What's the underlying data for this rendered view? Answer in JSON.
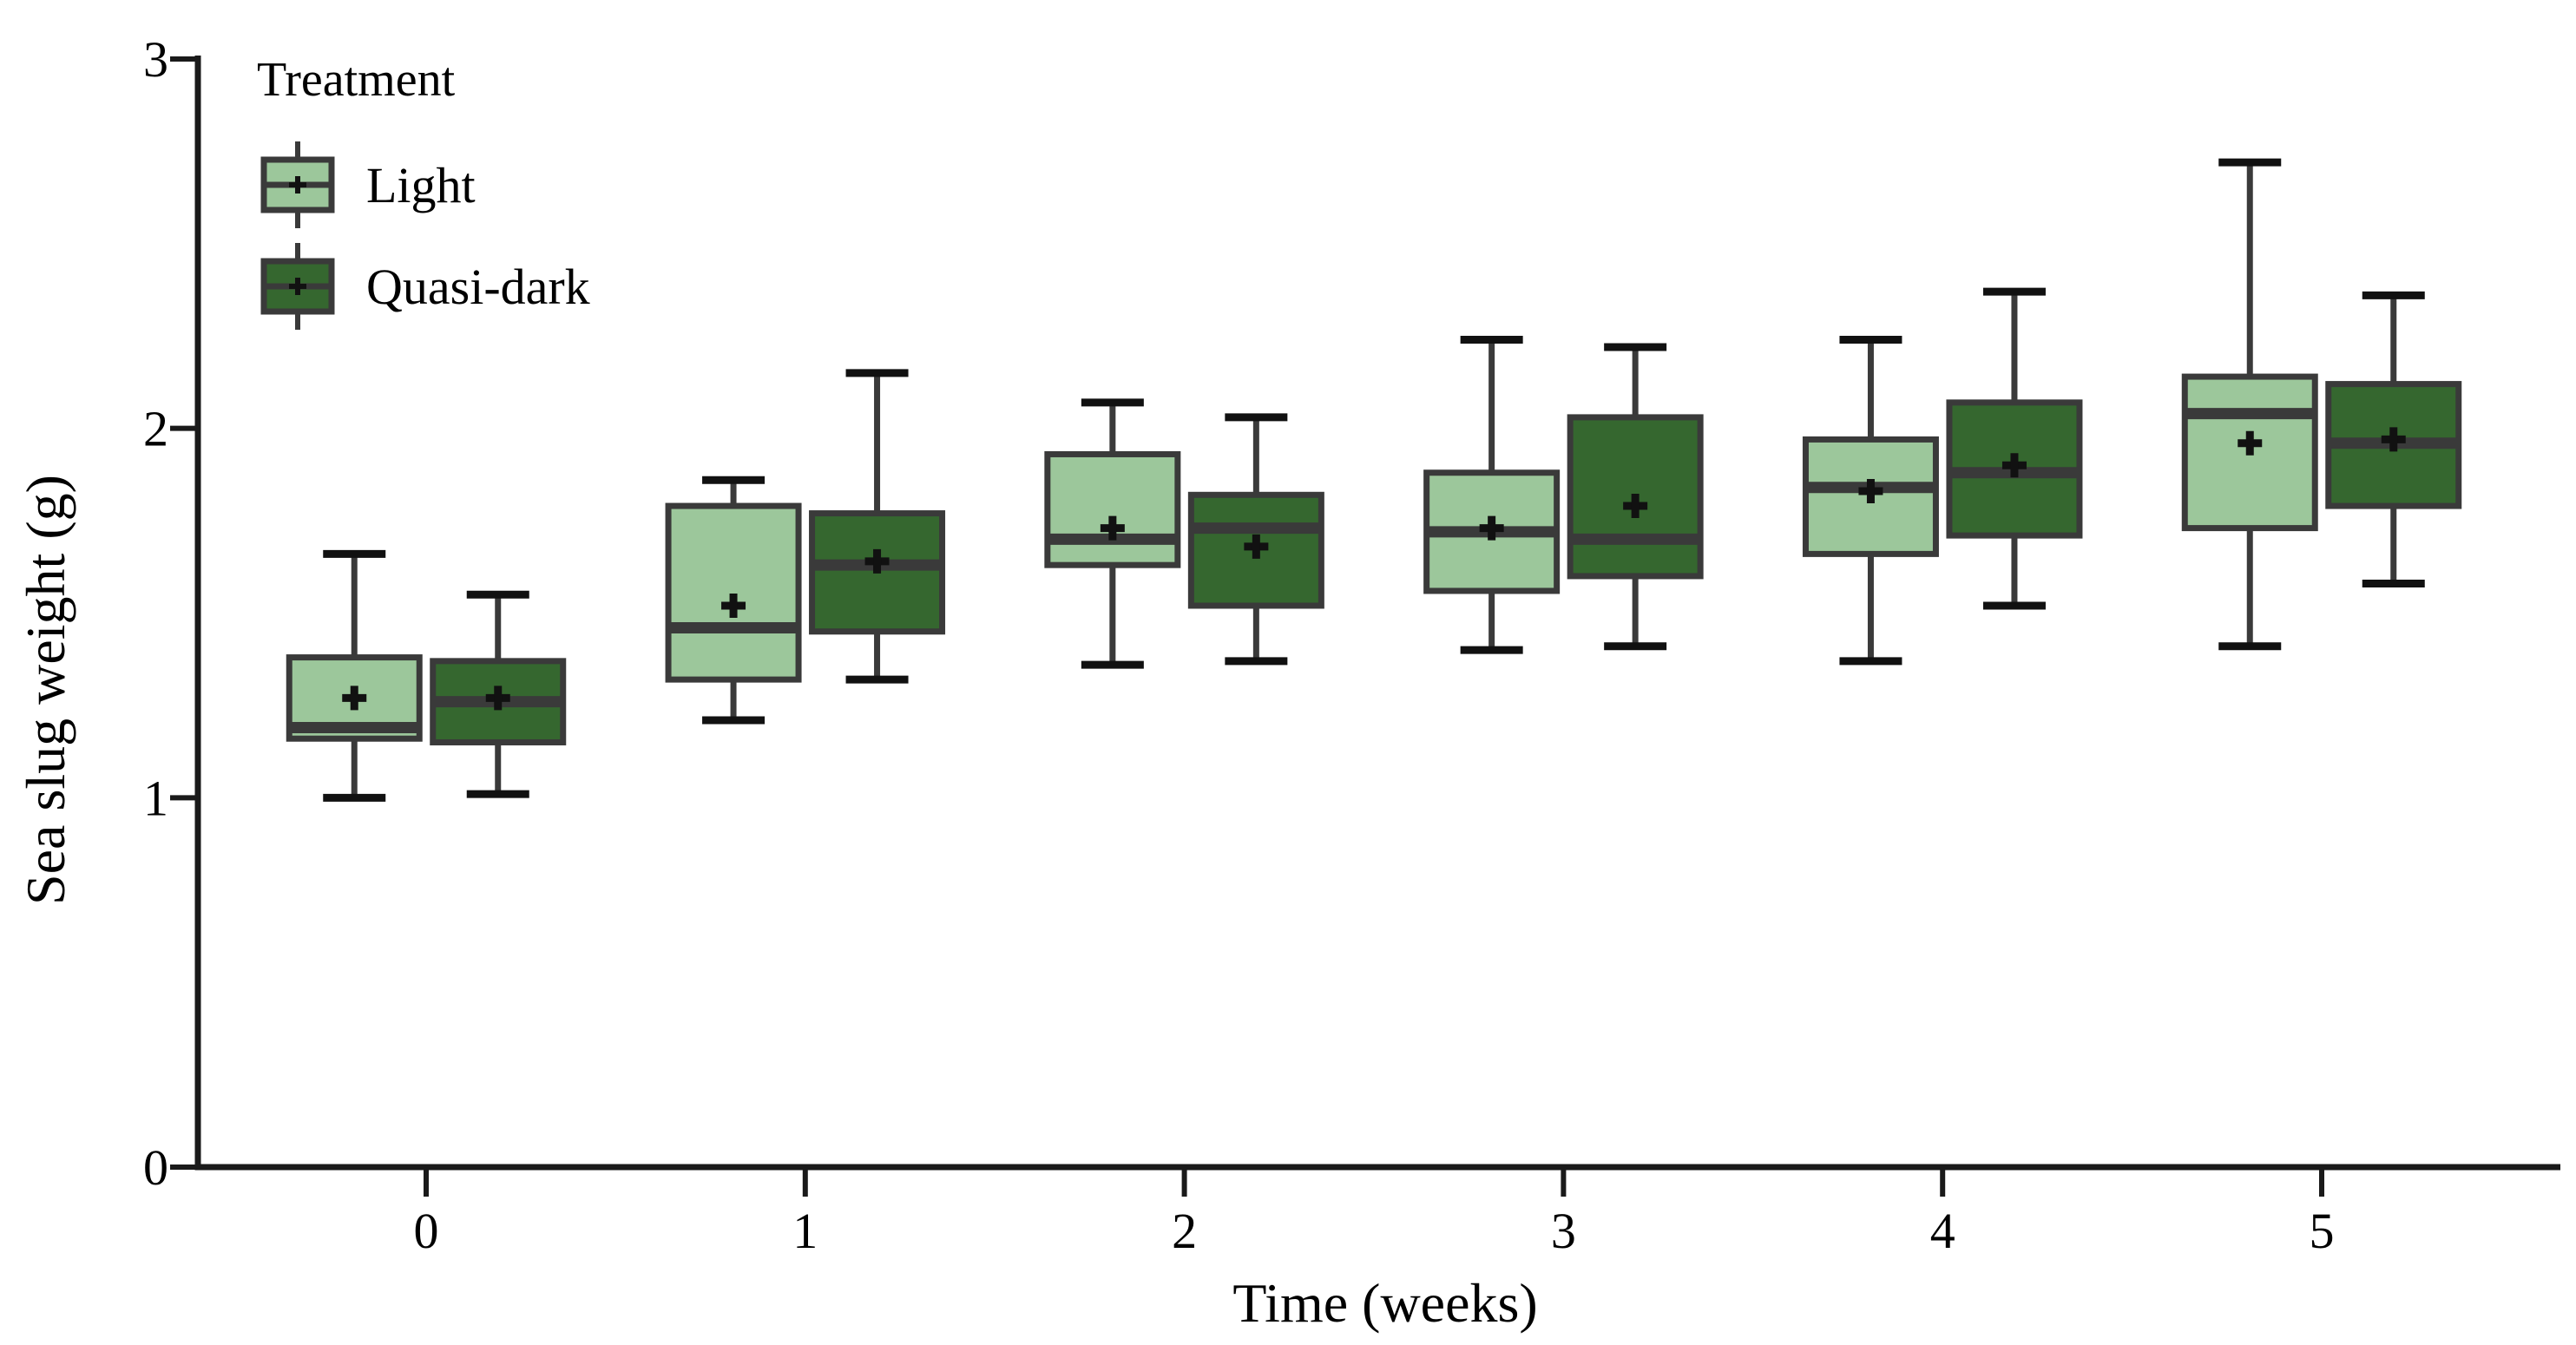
{
  "figure": {
    "background": "#ffffff",
    "text_color": "#000000",
    "box_border_color": "#3A3A3A",
    "whisker_color": "#3A3A3A",
    "whisker_cap_color": "#111111",
    "mean_marker_color": "#111111",
    "axis_color": "#1a1a1a"
  },
  "chart_data": {
    "type": "boxplot",
    "title": "",
    "xlabel": "Time (weeks)",
    "ylabel": "Sea slug weight (g)",
    "legend_title": "Treatment",
    "legend_position": "top-left-inside",
    "grid": false,
    "categories": [
      "0",
      "1",
      "2",
      "3",
      "4",
      "5"
    ],
    "yticks": [
      "0",
      "1",
      "2",
      "3"
    ],
    "ylim": [
      0,
      3
    ],
    "units": "g",
    "series": [
      {
        "name": "Light",
        "color": "#9CC79B",
        "boxes": [
          {
            "week": 0,
            "min": 1.0,
            "q1": 1.16,
            "median": 1.19,
            "q3": 1.38,
            "max": 1.66,
            "mean": 1.27
          },
          {
            "week": 1,
            "min": 1.21,
            "q1": 1.32,
            "median": 1.46,
            "q3": 1.79,
            "max": 1.86,
            "mean": 1.52
          },
          {
            "week": 2,
            "min": 1.36,
            "q1": 1.63,
            "median": 1.7,
            "q3": 1.93,
            "max": 2.07,
            "mean": 1.73
          },
          {
            "week": 3,
            "min": 1.4,
            "q1": 1.56,
            "median": 1.72,
            "q3": 1.88,
            "max": 2.24,
            "mean": 1.73
          },
          {
            "week": 4,
            "min": 1.37,
            "q1": 1.66,
            "median": 1.84,
            "q3": 1.97,
            "max": 2.24,
            "mean": 1.83
          },
          {
            "week": 5,
            "min": 1.41,
            "q1": 1.73,
            "median": 2.04,
            "q3": 2.14,
            "max": 2.72,
            "mean": 1.96
          }
        ]
      },
      {
        "name": "Quasi-dark",
        "color": "#35672F",
        "boxes": [
          {
            "week": 0,
            "min": 1.01,
            "q1": 1.15,
            "median": 1.26,
            "q3": 1.37,
            "max": 1.55,
            "mean": 1.27
          },
          {
            "week": 1,
            "min": 1.32,
            "q1": 1.45,
            "median": 1.63,
            "q3": 1.77,
            "max": 2.15,
            "mean": 1.64
          },
          {
            "week": 2,
            "min": 1.37,
            "q1": 1.52,
            "median": 1.73,
            "q3": 1.82,
            "max": 2.03,
            "mean": 1.68
          },
          {
            "week": 3,
            "min": 1.41,
            "q1": 1.6,
            "median": 1.7,
            "q3": 2.03,
            "max": 2.22,
            "mean": 1.79
          },
          {
            "week": 4,
            "min": 1.52,
            "q1": 1.71,
            "median": 1.88,
            "q3": 2.07,
            "max": 2.37,
            "mean": 1.9
          },
          {
            "week": 5,
            "min": 1.58,
            "q1": 1.79,
            "median": 1.96,
            "q3": 2.12,
            "max": 2.36,
            "mean": 1.97
          }
        ]
      }
    ]
  }
}
